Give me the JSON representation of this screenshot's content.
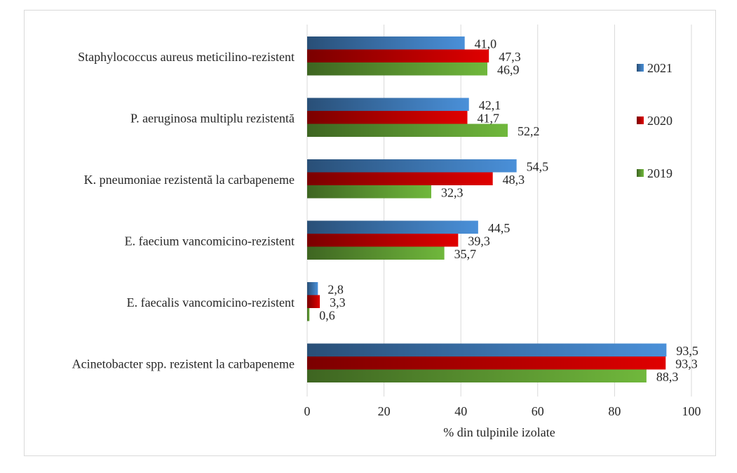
{
  "chart_data": {
    "type": "bar",
    "orientation": "horizontal",
    "title": "",
    "xlabel": "% din tulpinile izolate",
    "ylabel": "",
    "xlim": [
      0,
      100
    ],
    "x_ticks": [
      "0",
      "20",
      "40",
      "60",
      "80",
      "100"
    ],
    "grid": "vertical",
    "legend_position": "right",
    "categories": [
      "Staphylococcus aureus meticilino-rezistent",
      "P. aeruginosa multiplu rezistentă",
      "K. pneumoniae rezistentă la carbapeneme",
      "E. faecium vancomicino-rezistent",
      "E. faecalis vancomicino-rezistent",
      "Acinetobacter spp. rezistent la carbapeneme"
    ],
    "series": [
      {
        "name": "2021",
        "color": "#4a90d9",
        "values": [
          41.0,
          42.1,
          54.5,
          44.5,
          2.8,
          93.5
        ],
        "labels": [
          "41,0",
          "42,1",
          "54,5",
          "44,5",
          "2,8",
          "93,5"
        ]
      },
      {
        "name": "2020",
        "color": "#e00000",
        "values": [
          47.3,
          41.7,
          48.3,
          39.3,
          3.3,
          93.3
        ],
        "labels": [
          "47,3",
          "41,7",
          "48,3",
          "39,3",
          "3,3",
          "93,3"
        ]
      },
      {
        "name": "2019",
        "color": "#70b83c",
        "values": [
          46.9,
          52.2,
          32.3,
          35.7,
          0.6,
          88.3
        ],
        "labels": [
          "46,9",
          "52,2",
          "32,3",
          "35,7",
          "0,6",
          "88,3"
        ]
      }
    ]
  }
}
